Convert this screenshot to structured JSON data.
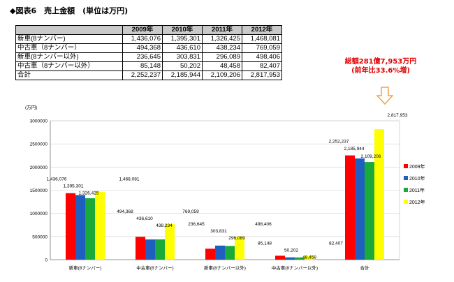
{
  "figure": {
    "title": "◆図表6　売上金額　(単位は万円)"
  },
  "table": {
    "headers": [
      "",
      "2009年",
      "2010年",
      "2011年",
      "2012年"
    ],
    "rows": [
      {
        "label": "新車(8ナンバー)",
        "values": [
          "1,436,076",
          "1,395,301",
          "1,326,425",
          "1,468,081"
        ]
      },
      {
        "label": "中古車（8ナンバー）",
        "values": [
          "494,368",
          "436,610",
          "438,234",
          "769,059"
        ]
      },
      {
        "label": "新車(8ナンバー以外)",
        "values": [
          "236,645",
          "303,831",
          "296,089",
          "498,406"
        ]
      },
      {
        "label": "中古車（8ナンバー以外）",
        "values": [
          "85,148",
          "50,202",
          "48,458",
          "82,407"
        ]
      },
      {
        "label": "合計",
        "values": [
          "2,252,237",
          "2,185,944",
          "2,109,206",
          "2,817,953"
        ]
      }
    ]
  },
  "annotation": {
    "line1": "総額281億7,953万円",
    "line2": "(前年比33.6%増)",
    "color": "#e10000",
    "arrow_color": "#f0a050",
    "arrow_icon": "arrow-down-icon"
  },
  "chart_data": {
    "type": "bar",
    "ylabel": "(万円)",
    "ylim": [
      0,
      3000000
    ],
    "yticks": [
      0,
      500000,
      1000000,
      1500000,
      2000000,
      2500000,
      3000000
    ],
    "categories": [
      "新車(8ナンバー)",
      "中古車(8ナンバー)",
      "新車(8ナンバー以外)",
      "中古車(8ナンバー以外)",
      "合計"
    ],
    "series": [
      {
        "name": "2009年",
        "color": "#ff0000",
        "values": [
          1436076,
          494368,
          236645,
          85148,
          2252237
        ]
      },
      {
        "name": "2010年",
        "color": "#1f5fbf",
        "values": [
          1395301,
          436610,
          303831,
          50202,
          2185944
        ]
      },
      {
        "name": "2011年",
        "color": "#1aaa3a",
        "values": [
          1326425,
          438234,
          296089,
          48458,
          2109206
        ]
      },
      {
        "name": "2012年",
        "color": "#ffff00",
        "values": [
          1468081,
          769059,
          498406,
          82407,
          2817953
        ]
      }
    ],
    "grid": true,
    "legend": "right"
  }
}
